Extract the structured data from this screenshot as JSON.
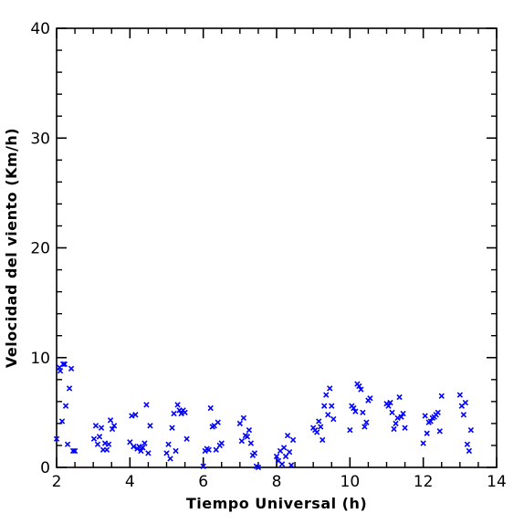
{
  "chart_data": {
    "type": "scatter",
    "xlabel": "Tiempo Universal (h)",
    "ylabel": "Velocidad del viento (Km/h)",
    "xlim": [
      2,
      14
    ],
    "ylim": [
      0,
      40
    ],
    "x_ticks": [
      2,
      4,
      6,
      8,
      10,
      12,
      14
    ],
    "y_ticks": [
      0,
      10,
      20,
      30,
      40
    ],
    "x_tick_labels": [
      "2",
      "4",
      "6",
      "8",
      "10",
      "12",
      "14"
    ],
    "y_tick_labels": [
      "0",
      "10",
      "20",
      "30",
      "40"
    ],
    "marker": "x",
    "color": "#0000ff",
    "series": [
      {
        "points": [
          [
            2.0,
            2.6
          ],
          [
            2.08,
            9.1
          ],
          [
            2.1,
            8.8
          ],
          [
            2.15,
            4.2
          ],
          [
            2.18,
            9.4
          ],
          [
            2.22,
            9.4
          ],
          [
            2.25,
            5.6
          ],
          [
            2.3,
            2.1
          ],
          [
            2.35,
            7.2
          ],
          [
            2.4,
            9.0
          ],
          [
            2.45,
            1.5
          ],
          [
            2.5,
            1.5
          ],
          [
            3.02,
            2.6
          ],
          [
            3.07,
            3.8
          ],
          [
            3.12,
            2.1
          ],
          [
            3.17,
            2.8
          ],
          [
            3.22,
            3.6
          ],
          [
            3.27,
            1.6
          ],
          [
            3.32,
            2.2
          ],
          [
            3.37,
            1.6
          ],
          [
            3.42,
            2.1
          ],
          [
            3.47,
            4.3
          ],
          [
            3.52,
            3.5
          ],
          [
            3.57,
            3.8
          ],
          [
            4.0,
            2.3
          ],
          [
            4.05,
            4.7
          ],
          [
            4.1,
            1.9
          ],
          [
            4.15,
            4.8
          ],
          [
            4.2,
            1.7
          ],
          [
            4.25,
            1.9
          ],
          [
            4.3,
            1.5
          ],
          [
            4.35,
            1.8
          ],
          [
            4.4,
            2.2
          ],
          [
            4.45,
            5.7
          ],
          [
            4.5,
            1.3
          ],
          [
            4.55,
            3.8
          ],
          [
            5.0,
            1.3
          ],
          [
            5.05,
            2.1
          ],
          [
            5.1,
            0.8
          ],
          [
            5.15,
            3.6
          ],
          [
            5.2,
            4.9
          ],
          [
            5.25,
            1.5
          ],
          [
            5.3,
            5.7
          ],
          [
            5.35,
            5.2
          ],
          [
            5.4,
            4.9
          ],
          [
            5.45,
            5.2
          ],
          [
            5.5,
            5.0
          ],
          [
            5.55,
            2.6
          ],
          [
            6.0,
            0.1
          ],
          [
            6.05,
            1.5
          ],
          [
            6.1,
            1.7
          ],
          [
            6.15,
            1.6
          ],
          [
            6.2,
            5.4
          ],
          [
            6.25,
            3.7
          ],
          [
            6.3,
            3.8
          ],
          [
            6.35,
            1.6
          ],
          [
            6.4,
            4.1
          ],
          [
            6.45,
            2.0
          ],
          [
            6.5,
            2.2
          ],
          [
            7.0,
            4.0
          ],
          [
            7.05,
            2.4
          ],
          [
            7.1,
            4.5
          ],
          [
            7.15,
            2.9
          ],
          [
            7.2,
            2.8
          ],
          [
            7.25,
            3.4
          ],
          [
            7.3,
            2.2
          ],
          [
            7.35,
            1.1
          ],
          [
            7.4,
            1.3
          ],
          [
            7.45,
            0.1
          ],
          [
            7.5,
            0.0
          ],
          [
            8.0,
            1.0
          ],
          [
            8.05,
            0.6
          ],
          [
            8.1,
            1.5
          ],
          [
            8.15,
            0.3
          ],
          [
            8.2,
            1.8
          ],
          [
            8.25,
            1.0
          ],
          [
            8.3,
            2.9
          ],
          [
            8.35,
            1.4
          ],
          [
            8.4,
            0.2
          ],
          [
            8.45,
            2.5
          ],
          [
            9.0,
            3.6
          ],
          [
            9.05,
            3.4
          ],
          [
            9.1,
            3.2
          ],
          [
            9.15,
            4.2
          ],
          [
            9.2,
            3.7
          ],
          [
            9.25,
            2.5
          ],
          [
            9.3,
            5.6
          ],
          [
            9.35,
            6.6
          ],
          [
            9.4,
            4.8
          ],
          [
            9.45,
            7.2
          ],
          [
            9.5,
            5.6
          ],
          [
            9.55,
            4.4
          ],
          [
            10.0,
            3.4
          ],
          [
            10.05,
            5.6
          ],
          [
            10.1,
            5.4
          ],
          [
            10.15,
            5.1
          ],
          [
            10.2,
            7.6
          ],
          [
            10.25,
            7.4
          ],
          [
            10.3,
            7.1
          ],
          [
            10.35,
            5.0
          ],
          [
            10.4,
            3.7
          ],
          [
            10.45,
            4.1
          ],
          [
            10.5,
            6.1
          ],
          [
            10.55,
            6.3
          ],
          [
            11.0,
            5.8
          ],
          [
            11.05,
            5.6
          ],
          [
            11.1,
            5.9
          ],
          [
            11.15,
            5.0
          ],
          [
            11.2,
            3.5
          ],
          [
            11.25,
            4.0
          ],
          [
            11.3,
            4.5
          ],
          [
            11.35,
            6.4
          ],
          [
            11.4,
            4.6
          ],
          [
            11.45,
            4.9
          ],
          [
            11.5,
            3.6
          ],
          [
            12.0,
            2.2
          ],
          [
            12.05,
            4.7
          ],
          [
            12.1,
            3.1
          ],
          [
            12.15,
            4.1
          ],
          [
            12.2,
            4.2
          ],
          [
            12.25,
            4.5
          ],
          [
            12.3,
            4.6
          ],
          [
            12.35,
            4.8
          ],
          [
            12.4,
            5.0
          ],
          [
            12.45,
            3.3
          ],
          [
            12.5,
            6.5
          ],
          [
            13.0,
            6.6
          ],
          [
            13.05,
            5.6
          ],
          [
            13.1,
            4.8
          ],
          [
            13.15,
            5.9
          ],
          [
            13.2,
            2.1
          ],
          [
            13.25,
            1.5
          ],
          [
            13.3,
            3.4
          ]
        ]
      }
    ]
  }
}
